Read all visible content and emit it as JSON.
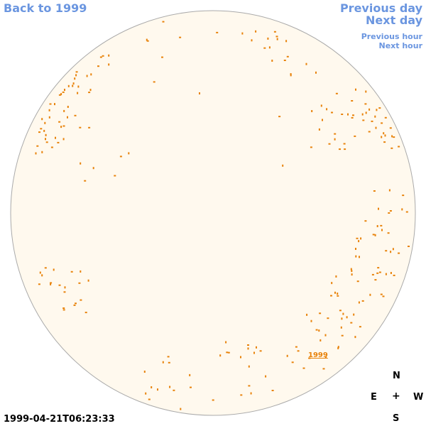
{
  "nav": {
    "back_label": "Back to 1999",
    "previous_day_label": "Previous day",
    "next_day_label": "Next day",
    "previous_hour_label": "Previous hour",
    "next_hour_label": "Next hour"
  },
  "compass": {
    "north": "N",
    "east": "E",
    "west": "W",
    "south": "S",
    "center": "+"
  },
  "timestamp": "1999-04-21T06:23:33",
  "region_label": "1999",
  "colors": {
    "link": "#6b96e0",
    "disk_fill": "#fff9ee",
    "disk_stroke": "#aaaaaa",
    "feature": "#e8820a"
  }
}
